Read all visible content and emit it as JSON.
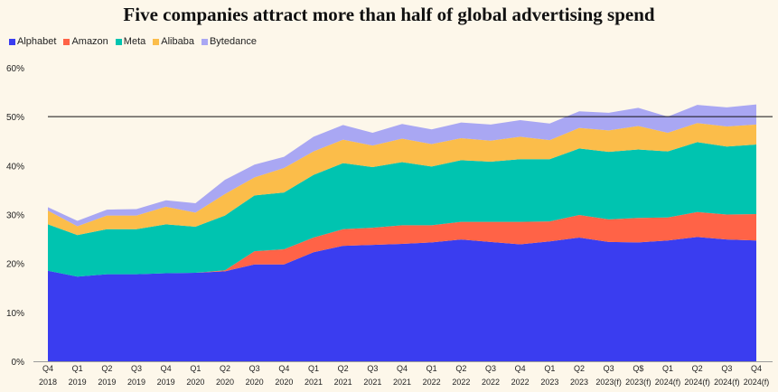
{
  "chart_data": {
    "type": "area",
    "stacked": true,
    "title": "Five companies attract more than half of global advertising spend",
    "xlabel": "",
    "ylabel": "",
    "ylim": [
      0,
      60
    ],
    "y_ticks": [
      "0%",
      "10%",
      "20%",
      "30%",
      "40%",
      "50%",
      "60%"
    ],
    "reference_line": 50,
    "categories": [
      [
        "Q4",
        "2018"
      ],
      [
        "Q1",
        "2019"
      ],
      [
        "Q2",
        "2019"
      ],
      [
        "Q3",
        "2019"
      ],
      [
        "Q4",
        "2019"
      ],
      [
        "Q1",
        "2020"
      ],
      [
        "Q2",
        "2020"
      ],
      [
        "Q3",
        "2020"
      ],
      [
        "Q4",
        "2020"
      ],
      [
        "Q1",
        "2021"
      ],
      [
        "Q2",
        "2021"
      ],
      [
        "Q3",
        "2021"
      ],
      [
        "Q4",
        "2021"
      ],
      [
        "Q1",
        "2022"
      ],
      [
        "Q2",
        "2022"
      ],
      [
        "Q3",
        "2022"
      ],
      [
        "Q4",
        "2022"
      ],
      [
        "Q1",
        "2023"
      ],
      [
        "Q2",
        "2023"
      ],
      [
        "Q3",
        "2023(f)"
      ],
      [
        "Q$",
        "2023(f)"
      ],
      [
        "Q1",
        "2024(f)"
      ],
      [
        "Q2",
        "2024(f)"
      ],
      [
        "Q3",
        "2024(f)"
      ],
      [
        "Q4",
        "2024(f)"
      ]
    ],
    "series": [
      {
        "name": "Alphabet",
        "color": "#3a3df0",
        "values": [
          18.5,
          17.3,
          17.8,
          17.8,
          18.0,
          18.1,
          18.4,
          19.8,
          19.8,
          22.3,
          23.6,
          23.8,
          24.0,
          24.3,
          24.9,
          24.4,
          23.9,
          24.5,
          25.3,
          24.4,
          24.3,
          24.7,
          25.4,
          24.9,
          24.7
        ]
      },
      {
        "name": "Amazon",
        "color": "#ff6347",
        "values": [
          0,
          0,
          0,
          0,
          0,
          0,
          0.2,
          2.7,
          3.1,
          3.0,
          3.4,
          3.5,
          3.8,
          3.5,
          3.6,
          4.1,
          4.6,
          4.1,
          4.6,
          4.6,
          5.0,
          4.7,
          5.1,
          5.1,
          5.4
        ]
      },
      {
        "name": "Meta",
        "color": "#00c4b0",
        "values": [
          9.5,
          8.5,
          9.2,
          9.2,
          10.0,
          9.4,
          11.2,
          11.4,
          11.6,
          12.8,
          13.5,
          12.4,
          12.9,
          12.0,
          12.6,
          12.3,
          12.8,
          12.7,
          13.6,
          13.8,
          14.0,
          13.5,
          14.3,
          13.9,
          14.2
        ]
      },
      {
        "name": "Alibaba",
        "color": "#fbbd4a",
        "values": [
          2.8,
          1.8,
          2.8,
          2.8,
          3.6,
          2.9,
          4.4,
          3.7,
          5.0,
          4.8,
          4.8,
          4.4,
          4.8,
          4.6,
          4.5,
          4.3,
          4.6,
          3.9,
          4.2,
          4.4,
          4.8,
          3.8,
          3.9,
          4.1,
          4.1
        ]
      },
      {
        "name": "Bytedance",
        "color": "#a9a7f3",
        "values": [
          0.7,
          1.1,
          1.2,
          1.3,
          1.3,
          1.9,
          2.9,
          2.6,
          2.3,
          3.0,
          3.0,
          2.6,
          3.0,
          3.0,
          3.2,
          3.3,
          3.4,
          3.4,
          3.4,
          3.6,
          3.7,
          3.3,
          3.7,
          3.9,
          4.1
        ]
      }
    ]
  }
}
